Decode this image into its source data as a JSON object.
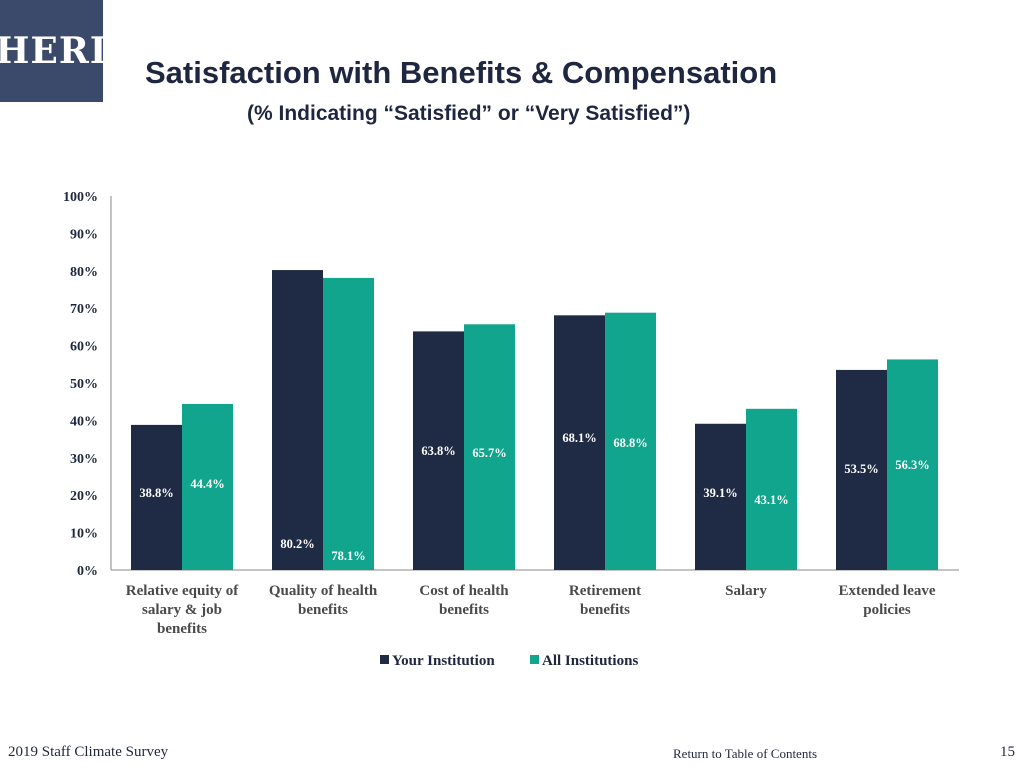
{
  "logo": {
    "text": "HERI"
  },
  "header": {
    "title": "Satisfaction with Benefits & Compensation",
    "subtitle": "(% Indicating “Satisfied” or “Very Satisfied”)"
  },
  "footer": {
    "survey": "2019 Staff Climate Survey",
    "toc_link": "Return to Table of Contents",
    "page": "15"
  },
  "colors": {
    "your": "#1f2a44",
    "all": "#10a58c"
  },
  "chart_data": {
    "type": "bar",
    "title": "Satisfaction with Benefits & Compensation",
    "subtitle": "(% Indicating “Satisfied” or “Very Satisfied”)",
    "categories": [
      [
        "Relative equity of",
        "salary & job",
        "benefits"
      ],
      [
        "Quality of health",
        "benefits"
      ],
      [
        "Cost of health",
        "benefits"
      ],
      [
        "Retirement",
        "benefits"
      ],
      [
        "Salary"
      ],
      [
        "Extended leave",
        "policies"
      ]
    ],
    "series": [
      {
        "name": "Your Institution",
        "values": [
          38.8,
          80.2,
          63.8,
          68.1,
          39.1,
          53.5
        ],
        "labels": [
          "38.8%",
          "80.2%",
          "63.8%",
          "68.1%",
          "39.1%",
          "53.5%"
        ]
      },
      {
        "name": "All Institutions",
        "values": [
          44.4,
          78.1,
          65.7,
          68.8,
          43.1,
          56.3
        ],
        "labels": [
          "44.4%",
          "78.1%",
          "65.7%",
          "68.8%",
          "43.1%",
          "56.3%"
        ]
      }
    ],
    "ylim": [
      0,
      100
    ],
    "yticks": [
      "0%",
      "10%",
      "20%",
      "30%",
      "40%",
      "50%",
      "60%",
      "70%",
      "80%",
      "90%",
      "100%"
    ],
    "legend": "bottom",
    "grid": false
  }
}
